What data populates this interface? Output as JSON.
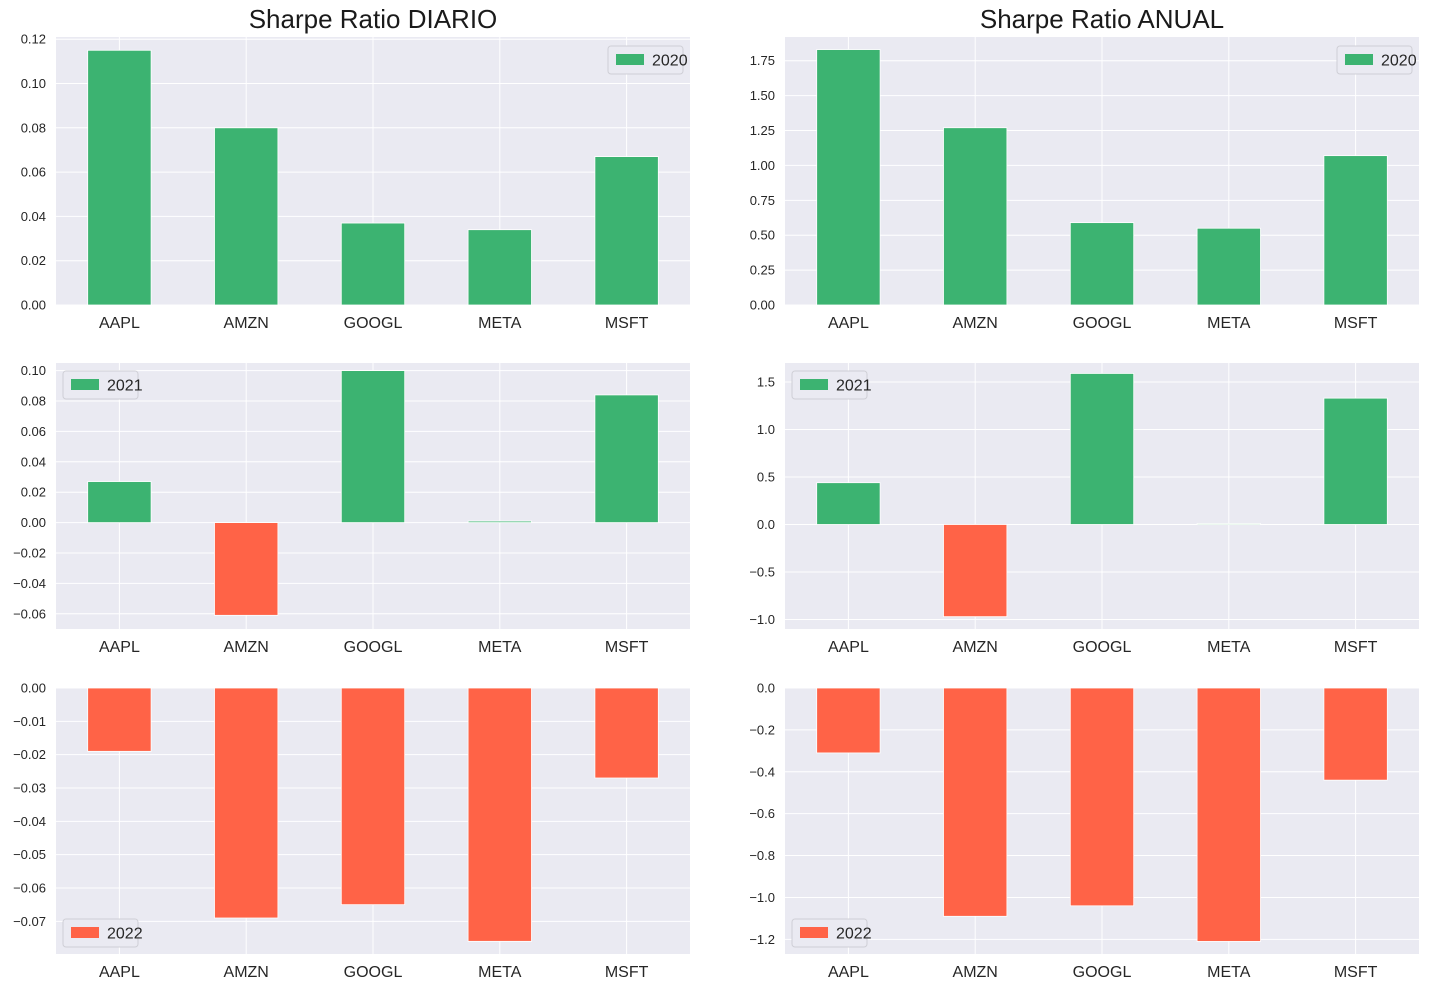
{
  "figure": {
    "titles": [
      "Sharpe Ratio DIARIO",
      "Sharpe Ratio ANUAL"
    ]
  },
  "colors": {
    "background": "#eaeaf2",
    "grid": "#ffffff",
    "positive": "#3cb371",
    "negative": "#ff6347",
    "text": "#262626"
  },
  "chart_data": [
    {
      "type": "bar",
      "title": "Sharpe Ratio DIARIO",
      "categories": [
        "AAPL",
        "AMZN",
        "GOOGL",
        "META",
        "MSFT"
      ],
      "series": [
        {
          "name": "2020",
          "values": [
            0.115,
            0.08,
            0.037,
            0.034,
            0.067
          ]
        }
      ],
      "ylim": [
        0,
        0.121
      ],
      "yticks": [
        0,
        0.02,
        0.04,
        0.06,
        0.08,
        0.1,
        0.12
      ],
      "ytick_labels": [
        "0.00",
        "0.02",
        "0.04",
        "0.06",
        "0.08",
        "0.10",
        "0.12"
      ],
      "legend": "upper right",
      "grid": true
    },
    {
      "type": "bar",
      "title": "Sharpe Ratio ANUAL",
      "categories": [
        "AAPL",
        "AMZN",
        "GOOGL",
        "META",
        "MSFT"
      ],
      "series": [
        {
          "name": "2020",
          "values": [
            1.83,
            1.27,
            0.59,
            0.55,
            1.07
          ]
        }
      ],
      "ylim": [
        0,
        1.92
      ],
      "yticks": [
        0,
        0.25,
        0.5,
        0.75,
        1.0,
        1.25,
        1.5,
        1.75
      ],
      "ytick_labels": [
        "0.00",
        "0.25",
        "0.50",
        "0.75",
        "1.00",
        "1.25",
        "1.50",
        "1.75"
      ],
      "legend": "upper right",
      "grid": true
    },
    {
      "type": "bar",
      "title": "",
      "categories": [
        "AAPL",
        "AMZN",
        "GOOGL",
        "META",
        "MSFT"
      ],
      "series": [
        {
          "name": "2021",
          "values": [
            0.027,
            -0.061,
            0.1,
            0.001,
            0.084
          ]
        }
      ],
      "ylim": [
        -0.07,
        0.105
      ],
      "yticks": [
        -0.06,
        -0.04,
        -0.02,
        0,
        0.02,
        0.04,
        0.06,
        0.08,
        0.1
      ],
      "ytick_labels": [
        "−0.06",
        "−0.04",
        "−0.02",
        "0.00",
        "0.02",
        "0.04",
        "0.06",
        "0.08",
        "0.10"
      ],
      "legend": "upper left",
      "grid": true
    },
    {
      "type": "bar",
      "title": "",
      "categories": [
        "AAPL",
        "AMZN",
        "GOOGL",
        "META",
        "MSFT"
      ],
      "series": [
        {
          "name": "2021",
          "values": [
            0.44,
            -0.97,
            1.59,
            0.01,
            1.33
          ]
        }
      ],
      "ylim": [
        -1.1,
        1.7
      ],
      "yticks": [
        -1.0,
        -0.5,
        0,
        0.5,
        1.0,
        1.5
      ],
      "ytick_labels": [
        "−1.0",
        "−0.5",
        "0.0",
        "0.5",
        "1.0",
        "1.5"
      ],
      "legend": "upper left",
      "grid": true
    },
    {
      "type": "bar",
      "title": "",
      "categories": [
        "AAPL",
        "AMZN",
        "GOOGL",
        "META",
        "MSFT"
      ],
      "series": [
        {
          "name": "2022",
          "values": [
            -0.019,
            -0.069,
            -0.065,
            -0.076,
            -0.027
          ]
        }
      ],
      "ylim": [
        -0.0798,
        0
      ],
      "yticks": [
        -0.07,
        -0.06,
        -0.05,
        -0.04,
        -0.03,
        -0.02,
        -0.01,
        0
      ],
      "ytick_labels": [
        "−0.07",
        "−0.06",
        "−0.05",
        "−0.04",
        "−0.03",
        "−0.02",
        "−0.01",
        "0.00"
      ],
      "legend": "lower left",
      "grid": true
    },
    {
      "type": "bar",
      "title": "",
      "categories": [
        "AAPL",
        "AMZN",
        "GOOGL",
        "META",
        "MSFT"
      ],
      "series": [
        {
          "name": "2022",
          "values": [
            -0.31,
            -1.09,
            -1.04,
            -1.21,
            -0.44
          ]
        }
      ],
      "ylim": [
        -1.27,
        0
      ],
      "yticks": [
        -1.2,
        -1.0,
        -0.8,
        -0.6,
        -0.4,
        -0.2,
        0
      ],
      "ytick_labels": [
        "−1.2",
        "−1.0",
        "−0.8",
        "−0.6",
        "−0.4",
        "−0.2",
        "0.0"
      ],
      "legend": "lower left",
      "grid": true
    }
  ]
}
